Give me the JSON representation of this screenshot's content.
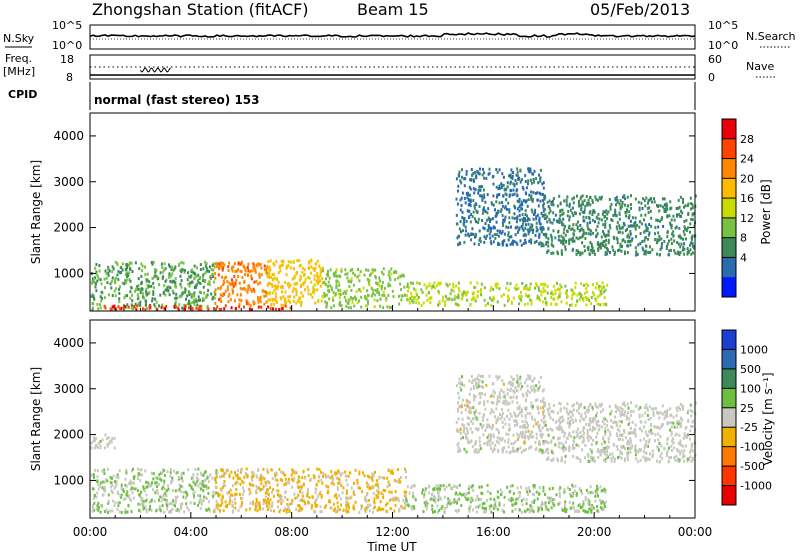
{
  "header": {
    "title": "Zhongshan Station (fitACF)",
    "beam": "Beam 15",
    "date": "05/Feb/2013"
  },
  "side_labels": {
    "n_sky": "N.Sky",
    "n_search": "N.Search",
    "freq_line1": "Freq.",
    "freq_line2": "[MHz]",
    "nave": "Nave",
    "cpid": "CPID"
  },
  "noise_panel": {
    "left_ticks": [
      "10^5",
      "10^0"
    ],
    "right_ticks": [
      "10^5",
      "10^0"
    ]
  },
  "freq_panel": {
    "left_ticks": [
      "18",
      "8"
    ],
    "right_ticks": [
      "60",
      "0"
    ]
  },
  "cpid_text": "normal (fast stereo) 153",
  "power_panel": {
    "ylabel": "Slant Range [km]",
    "yticks": [
      4000,
      3000,
      2000,
      1000
    ],
    "ylim": [
      180,
      4500
    ],
    "colorbar_label": "Power [dB]",
    "colorbar_ticks": [
      "28",
      "24",
      "20",
      "16",
      "12",
      "8",
      "4"
    ],
    "colorbar_colors": [
      "#e8000b",
      "#ff4400",
      "#ff8800",
      "#ffbb00",
      "#c8dc00",
      "#79c143",
      "#3b8a58",
      "#2a6bb0",
      "#0018ff"
    ]
  },
  "velocity_panel": {
    "ylabel": "Slant Range [km]",
    "yticks": [
      4000,
      3000,
      2000,
      1000
    ],
    "ylim": [
      180,
      4500
    ],
    "colorbar_label": "Velocity [m s⁻¹]",
    "colorbar_ticks": [
      "1000",
      "500",
      "100",
      "25",
      "-25",
      "-100",
      "-500",
      "-1000"
    ],
    "colorbar_colors": [
      "#1b3fd0",
      "#2e6ab0",
      "#3b8a58",
      "#6cc040",
      "#c8c8c0",
      "#f0b000",
      "#ff7a00",
      "#ff3500",
      "#e80000"
    ]
  },
  "x_axis": {
    "label": "Time UT",
    "ticks": [
      "00:00",
      "04:00",
      "08:00",
      "12:00",
      "16:00",
      "20:00",
      "00:00"
    ]
  },
  "chart_data": {
    "type": "heatmap",
    "title": "Zhongshan Station (fitACF)",
    "subtitle": "Beam 15",
    "date": "05/Feb/2013",
    "x": [
      "00:00",
      "04:00",
      "08:00",
      "12:00",
      "16:00",
      "20:00",
      "00:00"
    ],
    "xlabel": "Time UT",
    "xlim_hours": [
      0,
      24
    ],
    "ylabel": "Slant Range [km]",
    "ylim": [
      180,
      4500
    ],
    "series": [
      {
        "name": "Power [dB]",
        "colorbar_range": [
          0,
          30
        ],
        "regions": [
          {
            "t0": 0.0,
            "t1": 5.0,
            "r0": 200,
            "r1": 1250,
            "level": 10
          },
          {
            "t0": 4.9,
            "t1": 7.0,
            "r0": 300,
            "r1": 1250,
            "level": 22
          },
          {
            "t0": 7.0,
            "t1": 9.2,
            "r0": 300,
            "r1": 1300,
            "level": 18
          },
          {
            "t0": 9.2,
            "t1": 12.5,
            "r0": 250,
            "r1": 1100,
            "level": 12
          },
          {
            "t0": 0.5,
            "t1": 8.0,
            "r0": 200,
            "r1": 300,
            "level": 26
          },
          {
            "t0": 12.5,
            "t1": 20.5,
            "r0": 300,
            "r1": 800,
            "level": 14
          },
          {
            "t0": 14.5,
            "t1": 18.0,
            "r0": 1600,
            "r1": 3300,
            "level": 6
          },
          {
            "t0": 18.0,
            "t1": 24.0,
            "r0": 1400,
            "r1": 2700,
            "level": 8
          }
        ]
      },
      {
        "name": "Velocity [m s⁻¹]",
        "colorbar_range": [
          -1000,
          1000
        ],
        "regions": [
          {
            "t0": 0.0,
            "t1": 5.0,
            "r0": 300,
            "r1": 1250,
            "level": 100
          },
          {
            "t0": 4.9,
            "t1": 12.5,
            "r0": 300,
            "r1": 1250,
            "level": -150
          },
          {
            "t0": 12.5,
            "t1": 20.5,
            "r0": 300,
            "r1": 900,
            "level": 120
          },
          {
            "t0": 14.5,
            "t1": 18.0,
            "r0": 1600,
            "r1": 3300,
            "level": 0
          },
          {
            "t0": 18.0,
            "t1": 24.0,
            "r0": 1400,
            "r1": 2700,
            "level": 10
          },
          {
            "t0": 0.0,
            "t1": 1.0,
            "r0": 1700,
            "r1": 2000,
            "level": 5
          }
        ]
      }
    ],
    "grid": false,
    "legend": "right"
  }
}
